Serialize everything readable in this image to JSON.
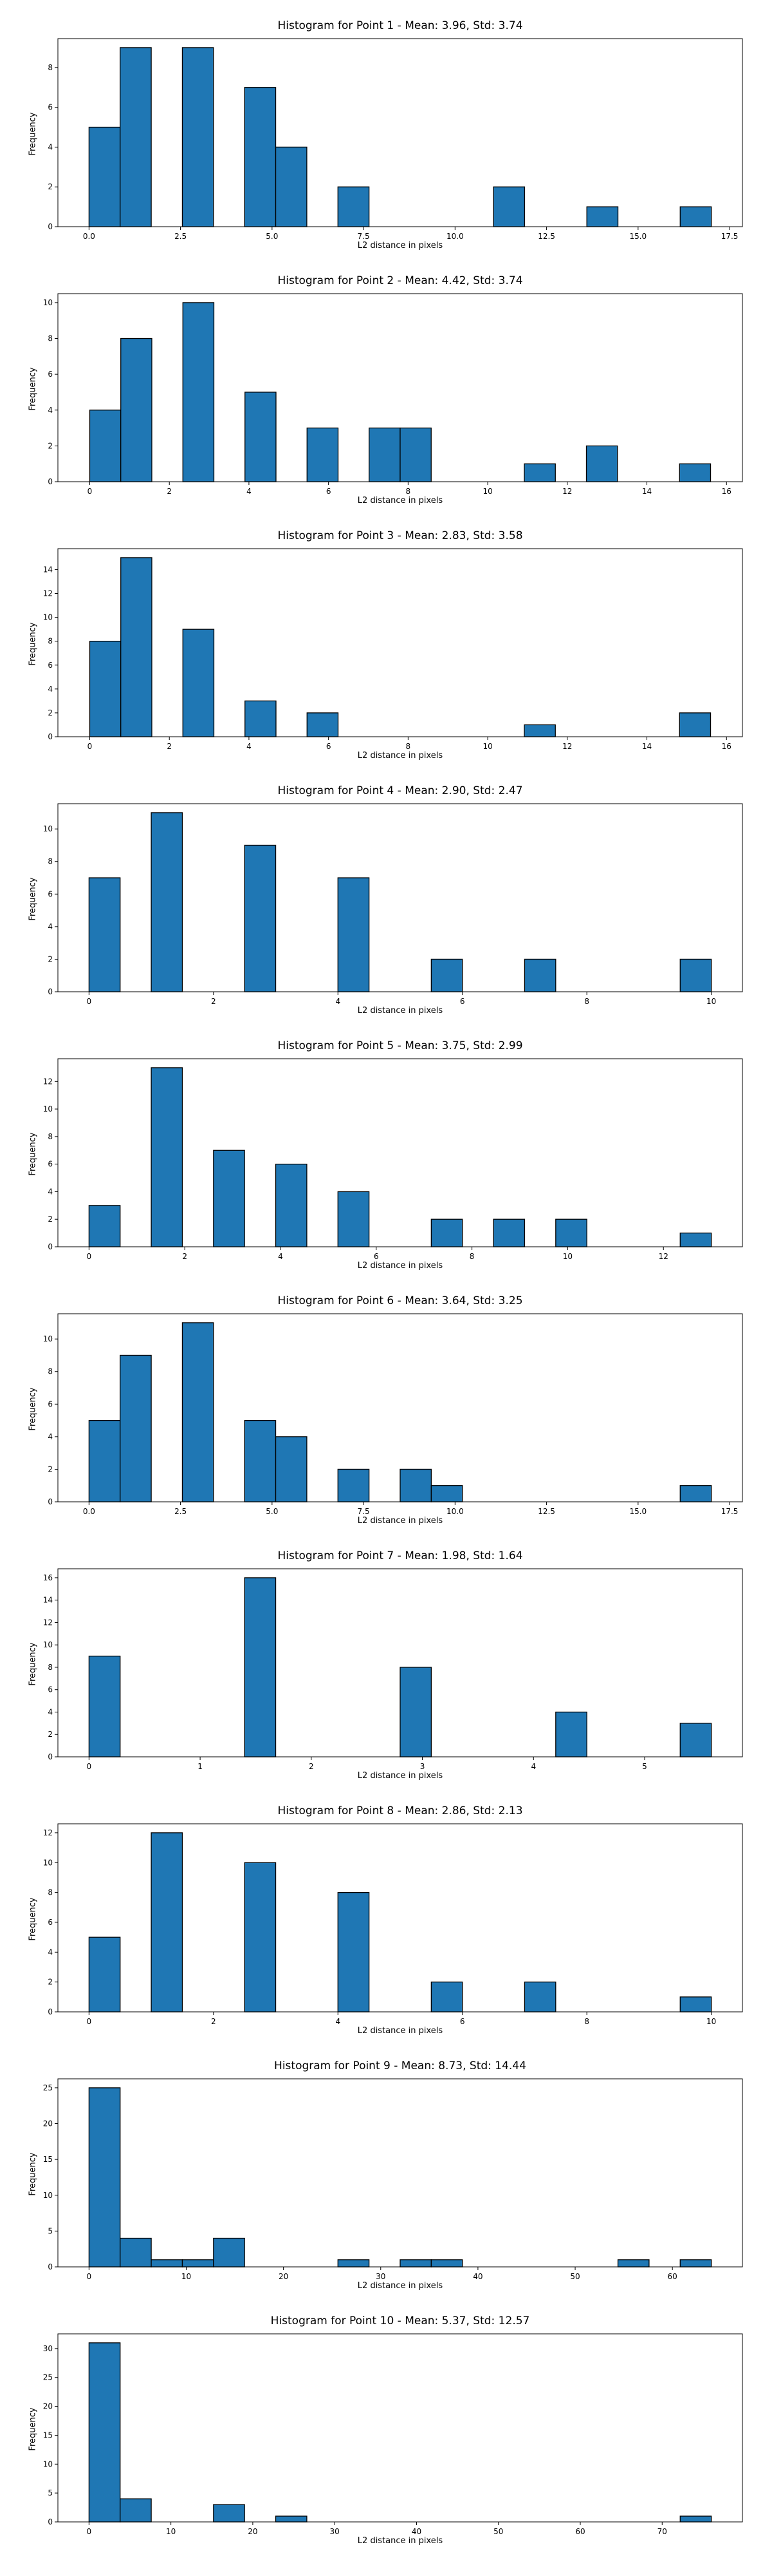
{
  "colors": {
    "bar": "#1f77b4",
    "edge": "#000000"
  },
  "chart_data": [
    {
      "type": "bar",
      "title": "Histogram for Point 1 - Mean: 3.96, Std: 3.74",
      "xlabel": "L2 distance in pixels",
      "ylabel": "Frequency",
      "xlim": [
        -0.85,
        17.85
      ],
      "ylim": [
        0,
        9.45
      ],
      "xticks": [
        "0.0",
        "2.5",
        "5.0",
        "7.5",
        "10.0",
        "12.5",
        "15.0",
        "17.5"
      ],
      "yticks": [
        "0",
        "2",
        "4",
        "6",
        "8"
      ],
      "bin_edges": [
        0.0,
        0.85,
        1.7,
        2.55,
        3.4,
        4.25,
        5.1,
        5.95,
        6.8,
        7.65,
        8.5,
        9.35,
        10.2,
        11.05,
        11.9,
        12.75,
        13.6,
        14.45,
        15.3,
        16.15,
        17.0
      ],
      "counts": [
        5,
        9,
        0,
        9,
        0,
        7,
        4,
        0,
        2,
        0,
        0,
        0,
        0,
        2,
        0,
        0,
        1,
        0,
        0,
        1
      ],
      "grid": false
    },
    {
      "type": "bar",
      "title": "Histogram for Point 2 - Mean: 4.42, Std: 3.74",
      "xlabel": "L2 distance in pixels",
      "ylabel": "Frequency",
      "xlim": [
        -0.8,
        16.4
      ],
      "ylim": [
        0,
        10.5
      ],
      "xticks": [
        "0",
        "2",
        "4",
        "6",
        "8",
        "10",
        "12",
        "14",
        "16"
      ],
      "yticks": [
        "0",
        "2",
        "4",
        "6",
        "8",
        "10"
      ],
      "bin_edges": [
        0.0,
        0.78,
        1.56,
        2.34,
        3.12,
        3.9,
        4.68,
        5.46,
        6.24,
        7.02,
        7.8,
        8.58,
        9.36,
        10.14,
        10.92,
        11.7,
        12.48,
        13.26,
        14.04,
        14.82,
        15.6
      ],
      "counts": [
        4,
        8,
        0,
        10,
        0,
        5,
        0,
        3,
        0,
        3,
        3,
        0,
        0,
        0,
        1,
        0,
        2,
        0,
        0,
        1
      ],
      "grid": false
    },
    {
      "type": "bar",
      "title": "Histogram for Point 3 - Mean: 2.83, Std: 3.58",
      "xlabel": "L2 distance in pixels",
      "ylabel": "Frequency",
      "xlim": [
        -0.8,
        16.4
      ],
      "ylim": [
        0,
        15.75
      ],
      "xticks": [
        "0",
        "2",
        "4",
        "6",
        "8",
        "10",
        "12",
        "14",
        "16"
      ],
      "yticks": [
        "0",
        "2",
        "4",
        "6",
        "8",
        "10",
        "12",
        "14"
      ],
      "bin_edges": [
        0.0,
        0.78,
        1.56,
        2.34,
        3.12,
        3.9,
        4.68,
        5.46,
        6.24,
        7.02,
        7.8,
        8.58,
        9.36,
        10.14,
        10.92,
        11.7,
        12.48,
        13.26,
        14.04,
        14.82,
        15.6
      ],
      "counts": [
        8,
        15,
        0,
        9,
        0,
        3,
        0,
        2,
        0,
        0,
        0,
        0,
        0,
        0,
        1,
        0,
        0,
        0,
        0,
        2
      ],
      "grid": false
    },
    {
      "type": "bar",
      "title": "Histogram for Point 4 - Mean: 2.90, Std: 2.47",
      "xlabel": "L2 distance in pixels",
      "ylabel": "Frequency",
      "xlim": [
        -0.5,
        10.5
      ],
      "ylim": [
        0,
        11.55
      ],
      "xticks": [
        "0",
        "2",
        "4",
        "6",
        "8",
        "10"
      ],
      "yticks": [
        "0",
        "2",
        "4",
        "6",
        "8",
        "10"
      ],
      "bin_edges": [
        0.0,
        0.5,
        1.0,
        1.5,
        2.0,
        2.5,
        3.0,
        3.5,
        4.0,
        4.5,
        5.0,
        5.5,
        6.0,
        6.5,
        7.0,
        7.5,
        8.0,
        8.5,
        9.0,
        9.5,
        10.0
      ],
      "counts": [
        7,
        0,
        11,
        0,
        0,
        9,
        0,
        0,
        7,
        0,
        0,
        2,
        0,
        0,
        2,
        0,
        0,
        0,
        0,
        2
      ],
      "grid": false
    },
    {
      "type": "bar",
      "title": "Histogram for Point 5 - Mean: 3.75, Std: 2.99",
      "xlabel": "L2 distance in pixels",
      "ylabel": "Frequency",
      "xlim": [
        -0.65,
        13.65
      ],
      "ylim": [
        0,
        13.65
      ],
      "xticks": [
        "0",
        "2",
        "4",
        "6",
        "8",
        "10",
        "12"
      ],
      "yticks": [
        "0",
        "2",
        "4",
        "6",
        "8",
        "10",
        "12"
      ],
      "bin_edges": [
        0.0,
        0.65,
        1.3,
        1.95,
        2.6,
        3.25,
        3.9,
        4.55,
        5.2,
        5.85,
        6.5,
        7.15,
        7.8,
        8.45,
        9.1,
        9.75,
        10.4,
        11.05,
        11.7,
        12.35,
        13.0
      ],
      "counts": [
        3,
        0,
        13,
        0,
        7,
        0,
        6,
        0,
        4,
        0,
        0,
        2,
        0,
        2,
        0,
        2,
        0,
        0,
        0,
        1
      ],
      "grid": false
    },
    {
      "type": "bar",
      "title": "Histogram for Point 6 - Mean: 3.64, Std: 3.25",
      "xlabel": "L2 distance in pixels",
      "ylabel": "Frequency",
      "xlim": [
        -0.85,
        17.85
      ],
      "ylim": [
        0,
        11.55
      ],
      "xticks": [
        "0.0",
        "2.5",
        "5.0",
        "7.5",
        "10.0",
        "12.5",
        "15.0",
        "17.5"
      ],
      "yticks": [
        "0",
        "2",
        "4",
        "6",
        "8",
        "10"
      ],
      "bin_edges": [
        0.0,
        0.85,
        1.7,
        2.55,
        3.4,
        4.25,
        5.1,
        5.95,
        6.8,
        7.65,
        8.5,
        9.35,
        10.2,
        11.05,
        11.9,
        12.75,
        13.6,
        14.45,
        15.3,
        16.15,
        17.0
      ],
      "counts": [
        5,
        9,
        0,
        11,
        0,
        5,
        4,
        0,
        2,
        0,
        2,
        1,
        0,
        0,
        0,
        0,
        0,
        0,
        0,
        1
      ],
      "grid": false
    },
    {
      "type": "bar",
      "title": "Histogram for Point 7 - Mean: 1.98, Std: 1.64",
      "xlabel": "L2 distance in pixels",
      "ylabel": "Frequency",
      "xlim": [
        -0.28,
        5.88
      ],
      "ylim": [
        0,
        16.8
      ],
      "xticks": [
        "0",
        "1",
        "2",
        "3",
        "4",
        "5"
      ],
      "yticks": [
        "0",
        "2",
        "4",
        "6",
        "8",
        "10",
        "12",
        "14",
        "16"
      ],
      "bin_edges": [
        0.0,
        0.28,
        0.56,
        0.84,
        1.12,
        1.4,
        1.68,
        1.96,
        2.24,
        2.52,
        2.8,
        3.08,
        3.36,
        3.64,
        3.92,
        4.2,
        4.48,
        4.76,
        5.04,
        5.32,
        5.6
      ],
      "counts": [
        9,
        0,
        0,
        0,
        0,
        16,
        0,
        0,
        0,
        0,
        8,
        0,
        0,
        0,
        0,
        4,
        0,
        0,
        0,
        3
      ],
      "grid": false
    },
    {
      "type": "bar",
      "title": "Histogram for Point 8 - Mean: 2.86, Std: 2.13",
      "xlabel": "L2 distance in pixels",
      "ylabel": "Frequency",
      "xlim": [
        -0.5,
        10.5
      ],
      "ylim": [
        0,
        12.6
      ],
      "xticks": [
        "0",
        "2",
        "4",
        "6",
        "8",
        "10"
      ],
      "yticks": [
        "0",
        "2",
        "4",
        "6",
        "8",
        "10",
        "12"
      ],
      "bin_edges": [
        0.0,
        0.5,
        1.0,
        1.5,
        2.0,
        2.5,
        3.0,
        3.5,
        4.0,
        4.5,
        5.0,
        5.5,
        6.0,
        6.5,
        7.0,
        7.5,
        8.0,
        8.5,
        9.0,
        9.5,
        10.0
      ],
      "counts": [
        5,
        0,
        12,
        0,
        0,
        10,
        0,
        0,
        8,
        0,
        0,
        2,
        0,
        0,
        2,
        0,
        0,
        0,
        0,
        1
      ],
      "grid": false
    },
    {
      "type": "bar",
      "title": "Histogram for Point 9 - Mean: 8.73, Std: 14.44",
      "xlabel": "L2 distance in pixels",
      "ylabel": "Frequency",
      "xlim": [
        -3.2,
        67.2
      ],
      "ylim": [
        0,
        26.25
      ],
      "xticks": [
        "0",
        "10",
        "20",
        "30",
        "40",
        "50",
        "60"
      ],
      "yticks": [
        "0",
        "5",
        "10",
        "15",
        "20",
        "25"
      ],
      "bin_edges": [
        0.0,
        3.2,
        6.4,
        9.6,
        12.8,
        16.0,
        19.2,
        22.4,
        25.6,
        28.8,
        32.0,
        35.2,
        38.4,
        41.6,
        44.8,
        48.0,
        51.2,
        54.4,
        57.6,
        60.8,
        64.0
      ],
      "counts": [
        25,
        4,
        1,
        1,
        4,
        0,
        0,
        0,
        1,
        0,
        1,
        1,
        0,
        0,
        0,
        0,
        0,
        1,
        0,
        1
      ],
      "grid": false
    },
    {
      "type": "bar",
      "title": "Histogram for Point 10 - Mean: 5.37, Std: 12.57",
      "xlabel": "L2 distance in pixels",
      "ylabel": "Frequency",
      "xlim": [
        -3.8,
        79.8
      ],
      "ylim": [
        0,
        32.55
      ],
      "xticks": [
        "0",
        "10",
        "20",
        "30",
        "40",
        "50",
        "60",
        "70"
      ],
      "yticks": [
        "0",
        "5",
        "10",
        "15",
        "20",
        "25",
        "30"
      ],
      "bin_edges": [
        0.0,
        3.8,
        7.6,
        11.4,
        15.2,
        19.0,
        22.8,
        26.6,
        30.4,
        34.2,
        38.0,
        41.8,
        45.6,
        49.4,
        53.2,
        57.0,
        60.8,
        64.6,
        68.4,
        72.2,
        76.0
      ],
      "counts": [
        31,
        4,
        0,
        0,
        3,
        0,
        1,
        0,
        0,
        0,
        0,
        0,
        0,
        0,
        0,
        0,
        0,
        0,
        0,
        1
      ],
      "grid": false
    }
  ]
}
